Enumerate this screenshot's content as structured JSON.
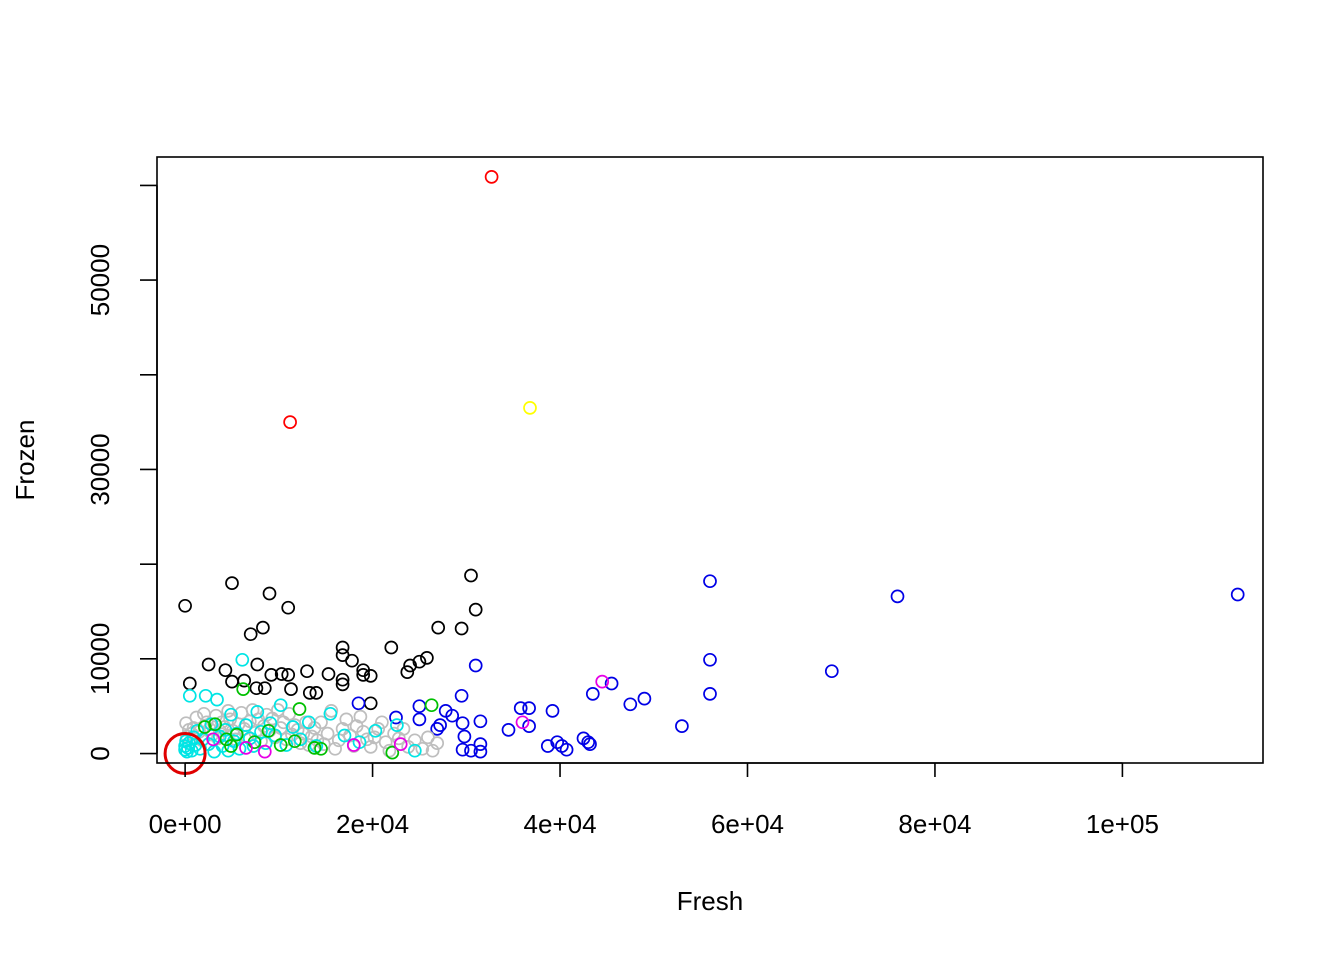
{
  "chart_data": {
    "type": "scatter",
    "title": "",
    "xlabel": "Fresh",
    "ylabel": "Frozen",
    "xlim": [
      -3000,
      115000
    ],
    "ylim": [
      -1000,
      63000
    ],
    "grid": false,
    "legend": "none",
    "x_ticks": [
      {
        "value": 0,
        "label": "0e+00"
      },
      {
        "value": 20000,
        "label": "2e+04"
      },
      {
        "value": 40000,
        "label": "4e+04"
      },
      {
        "value": 60000,
        "label": "6e+04"
      },
      {
        "value": 80000,
        "label": "8e+04"
      },
      {
        "value": 100000,
        "label": "1e+05"
      }
    ],
    "y_ticks": [
      {
        "value": 0,
        "label": "0"
      },
      {
        "value": 10000,
        "label": "10000"
      },
      {
        "value": 20000,
        "label": ""
      },
      {
        "value": 30000,
        "label": "30000"
      },
      {
        "value": 40000,
        "label": ""
      },
      {
        "value": 50000,
        "label": "50000"
      },
      {
        "value": 60000,
        "label": ""
      }
    ],
    "highlight": {
      "x": 0,
      "y": 0,
      "color": "#e00000"
    },
    "series": [
      {
        "color": "#000000",
        "points": [
          [
            0,
            15600
          ],
          [
            5000,
            18000
          ],
          [
            9000,
            16900
          ],
          [
            11000,
            15400
          ],
          [
            7000,
            12600
          ],
          [
            8300,
            13300
          ],
          [
            500,
            7400
          ],
          [
            2500,
            9400
          ],
          [
            4300,
            8800
          ],
          [
            5000,
            7600
          ],
          [
            6300,
            7700
          ],
          [
            7600,
            6900
          ],
          [
            8500,
            6900
          ],
          [
            7700,
            9400
          ],
          [
            9200,
            8300
          ],
          [
            10300,
            8400
          ],
          [
            11000,
            8300
          ],
          [
            11300,
            6800
          ],
          [
            13000,
            8700
          ],
          [
            13300,
            6400
          ],
          [
            14000,
            6400
          ],
          [
            15300,
            8400
          ],
          [
            16800,
            11200
          ],
          [
            16800,
            10400
          ],
          [
            16800,
            7800
          ],
          [
            16800,
            7300
          ],
          [
            17800,
            9800
          ],
          [
            19000,
            8800
          ],
          [
            19000,
            8300
          ],
          [
            19800,
            8200
          ],
          [
            19800,
            5300
          ],
          [
            22000,
            11200
          ],
          [
            23700,
            8600
          ],
          [
            24000,
            9300
          ],
          [
            25000,
            9700
          ],
          [
            25800,
            10100
          ],
          [
            27000,
            13300
          ],
          [
            29500,
            13200
          ],
          [
            30500,
            18800
          ],
          [
            31000,
            15200
          ]
        ]
      },
      {
        "color": "#0000e6",
        "points": [
          [
            18500,
            5300
          ],
          [
            22500,
            3800
          ],
          [
            25000,
            5000
          ],
          [
            25000,
            3600
          ],
          [
            26900,
            2600
          ],
          [
            27200,
            3000
          ],
          [
            27800,
            4500
          ],
          [
            28500,
            4000
          ],
          [
            29500,
            6100
          ],
          [
            29600,
            3200
          ],
          [
            29600,
            400
          ],
          [
            29800,
            1800
          ],
          [
            30500,
            300
          ],
          [
            31000,
            9300
          ],
          [
            31500,
            3400
          ],
          [
            31500,
            1000
          ],
          [
            31500,
            200
          ],
          [
            34500,
            2500
          ],
          [
            35800,
            4800
          ],
          [
            36700,
            4800
          ],
          [
            36700,
            2900
          ],
          [
            38700,
            800
          ],
          [
            39200,
            4500
          ],
          [
            39700,
            1200
          ],
          [
            40200,
            800
          ],
          [
            40700,
            400
          ],
          [
            42500,
            1600
          ],
          [
            43000,
            1200
          ],
          [
            43200,
            1000
          ],
          [
            43500,
            6300
          ],
          [
            45500,
            7400
          ],
          [
            47500,
            5200
          ],
          [
            49000,
            5800
          ],
          [
            53000,
            2900
          ],
          [
            56000,
            18200
          ],
          [
            56000,
            9900
          ],
          [
            56000,
            6300
          ],
          [
            69000,
            8700
          ],
          [
            76000,
            16600
          ],
          [
            112300,
            16800
          ]
        ]
      },
      {
        "color": "#bebebe",
        "points": [
          [
            100,
            3200
          ],
          [
            200,
            1800
          ],
          [
            400,
            2500
          ],
          [
            700,
            2100
          ],
          [
            900,
            2700
          ],
          [
            1200,
            3800
          ],
          [
            1500,
            2300
          ],
          [
            1800,
            1400
          ],
          [
            2000,
            4200
          ],
          [
            2300,
            3300
          ],
          [
            2600,
            2600
          ],
          [
            2900,
            2000
          ],
          [
            3100,
            3100
          ],
          [
            3300,
            4000
          ],
          [
            3500,
            1600
          ],
          [
            3700,
            2400
          ],
          [
            3900,
            3300
          ],
          [
            4200,
            2800
          ],
          [
            4400,
            1900
          ],
          [
            4600,
            4500
          ],
          [
            4800,
            3600
          ],
          [
            5100,
            2400
          ],
          [
            5400,
            1500
          ],
          [
            5700,
            3100
          ],
          [
            6000,
            4300
          ],
          [
            6300,
            2600
          ],
          [
            6600,
            1800
          ],
          [
            6900,
            3400
          ],
          [
            7200,
            4600
          ],
          [
            7500,
            2200
          ],
          [
            7800,
            3600
          ],
          [
            8100,
            1300
          ],
          [
            8400,
            2900
          ],
          [
            8700,
            4100
          ],
          [
            9000,
            2400
          ],
          [
            9300,
            3700
          ],
          [
            9600,
            1700
          ],
          [
            9900,
            4600
          ],
          [
            10200,
            2700
          ],
          [
            10500,
            3300
          ],
          [
            10800,
            1500
          ],
          [
            11100,
            4200
          ],
          [
            11400,
            2000
          ],
          [
            11700,
            3000
          ],
          [
            12000,
            2500
          ],
          [
            12300,
            1100
          ],
          [
            12600,
            2100
          ],
          [
            12900,
            3300
          ],
          [
            13200,
            900
          ],
          [
            13500,
            1800
          ],
          [
            13800,
            2700
          ],
          [
            14100,
            1400
          ],
          [
            14500,
            3300
          ],
          [
            14800,
            1000
          ],
          [
            15200,
            2100
          ],
          [
            15600,
            4500
          ],
          [
            16000,
            500
          ],
          [
            16400,
            1400
          ],
          [
            16800,
            2600
          ],
          [
            17200,
            3600
          ],
          [
            17600,
            1900
          ],
          [
            18000,
            800
          ],
          [
            18300,
            2900
          ],
          [
            18700,
            3900
          ],
          [
            19000,
            2300
          ],
          [
            19400,
            1500
          ],
          [
            19800,
            700
          ],
          [
            20200,
            1700
          ],
          [
            20600,
            2600
          ],
          [
            21000,
            3300
          ],
          [
            21400,
            1200
          ],
          [
            21800,
            300
          ],
          [
            22300,
            2100
          ],
          [
            22800,
            1600
          ],
          [
            23300,
            2600
          ],
          [
            23800,
            700
          ],
          [
            24500,
            1400
          ],
          [
            25300,
            500
          ],
          [
            25900,
            1700
          ],
          [
            26400,
            300
          ],
          [
            26900,
            1100
          ]
        ]
      },
      {
        "color": "#00e5e5",
        "points": [
          [
            0,
            800
          ],
          [
            0,
            400
          ],
          [
            100,
            1300
          ],
          [
            200,
            200
          ],
          [
            300,
            600
          ],
          [
            400,
            1100
          ],
          [
            500,
            6100
          ],
          [
            700,
            300
          ],
          [
            900,
            1700
          ],
          [
            1100,
            900
          ],
          [
            1300,
            2400
          ],
          [
            1600,
            500
          ],
          [
            1900,
            1500
          ],
          [
            2200,
            6100
          ],
          [
            2500,
            1000
          ],
          [
            2800,
            3100
          ],
          [
            3100,
            200
          ],
          [
            3400,
            5700
          ],
          [
            3700,
            1800
          ],
          [
            4000,
            800
          ],
          [
            4300,
            2500
          ],
          [
            4600,
            300
          ],
          [
            4900,
            4100
          ],
          [
            5200,
            1300
          ],
          [
            5500,
            2100
          ],
          [
            5800,
            500
          ],
          [
            6100,
            9900
          ],
          [
            6500,
            3000
          ],
          [
            6900,
            1600
          ],
          [
            7300,
            800
          ],
          [
            7700,
            4400
          ],
          [
            8100,
            2300
          ],
          [
            8600,
            1100
          ],
          [
            9100,
            3200
          ],
          [
            9600,
            1900
          ],
          [
            10200,
            5100
          ],
          [
            10800,
            900
          ],
          [
            11500,
            2800
          ],
          [
            12300,
            1500
          ],
          [
            13200,
            3300
          ],
          [
            14000,
            800
          ],
          [
            15500,
            4200
          ],
          [
            17000,
            1900
          ],
          [
            18600,
            1200
          ],
          [
            20300,
            2400
          ],
          [
            22600,
            3000
          ],
          [
            24500,
            300
          ]
        ]
      },
      {
        "color": "#00c000",
        "points": [
          [
            2100,
            2800
          ],
          [
            3200,
            3100
          ],
          [
            4400,
            1500
          ],
          [
            4900,
            800
          ],
          [
            5500,
            2000
          ],
          [
            6200,
            6800
          ],
          [
            7400,
            1200
          ],
          [
            8900,
            2400
          ],
          [
            10200,
            900
          ],
          [
            11700,
            1300
          ],
          [
            12200,
            4700
          ],
          [
            13800,
            600
          ],
          [
            14500,
            500
          ],
          [
            22100,
            100
          ],
          [
            26300,
            5100
          ]
        ]
      },
      {
        "color": "#e600e6",
        "points": [
          [
            3000,
            1500
          ],
          [
            6500,
            600
          ],
          [
            8500,
            200
          ],
          [
            18000,
            900
          ],
          [
            23000,
            1000
          ],
          [
            36000,
            3300
          ],
          [
            44500,
            7600
          ]
        ]
      },
      {
        "color": "#ff0000",
        "points": [
          [
            11200,
            35000
          ],
          [
            32700,
            60900
          ]
        ]
      },
      {
        "color": "#ffff00",
        "points": [
          [
            36800,
            36500
          ]
        ]
      }
    ]
  }
}
